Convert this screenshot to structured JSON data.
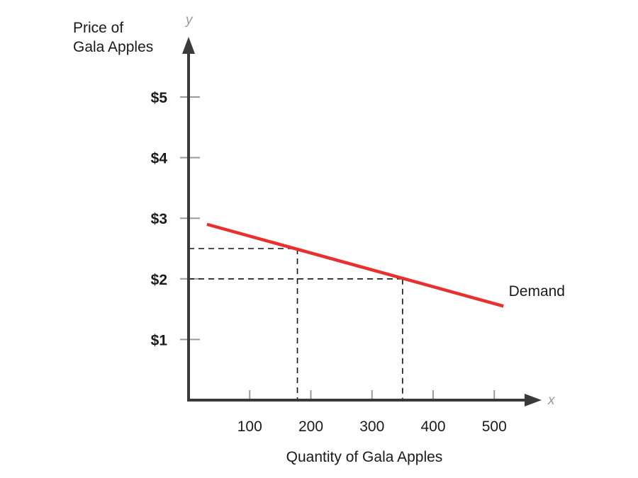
{
  "chart_data": {
    "type": "line",
    "ylabel_lines": [
      "Price of",
      "Gala Apples"
    ],
    "xlabel": "Quantity of Gala Apples",
    "x_axis_letter": "x",
    "y_axis_letter": "y",
    "xlim": [
      0,
      500
    ],
    "ylim": [
      0,
      5
    ],
    "x_ticks": [
      {
        "value": 100,
        "label": "100"
      },
      {
        "value": 200,
        "label": "200"
      },
      {
        "value": 300,
        "label": "300"
      },
      {
        "value": 400,
        "label": "400"
      },
      {
        "value": 500,
        "label": "500"
      }
    ],
    "y_ticks": [
      {
        "value": 1,
        "label": "$1"
      },
      {
        "value": 2,
        "label": "$2"
      },
      {
        "value": 3,
        "label": "$3"
      },
      {
        "value": 4,
        "label": "$4"
      },
      {
        "value": 5,
        "label": "$5"
      }
    ],
    "series": [
      {
        "name": "Demand",
        "color": "#e8312f",
        "points": [
          [
            30,
            2.9
          ],
          [
            515,
            1.55
          ]
        ]
      }
    ],
    "guides": [
      {
        "x": 178,
        "y": 2.5
      },
      {
        "x": 350,
        "y": 2.0
      }
    ],
    "grid": false,
    "axis_color": "#3a3a3a",
    "tick_color": "#9a9a9a",
    "guide_color": "#111111"
  }
}
